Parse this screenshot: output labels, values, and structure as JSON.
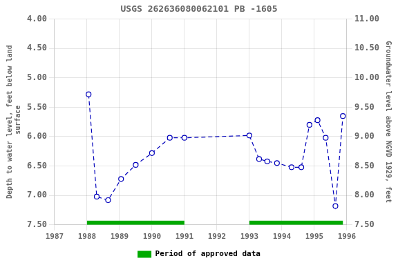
{
  "chart_data": {
    "type": "line",
    "title": "USGS 262636080062101 PB -1605",
    "y_label": "Depth to water level, feet below land\n surface",
    "y2_label": "Groundwater level above NGVD 1929, feet",
    "x": [
      1988.05,
      1988.3,
      1988.65,
      1989.05,
      1989.5,
      1990.0,
      1990.55,
      1991.0,
      1993.0,
      1993.3,
      1993.55,
      1993.85,
      1994.3,
      1994.6,
      1994.85,
      1995.1,
      1995.35,
      1995.65,
      1995.88
    ],
    "series": [
      {
        "color": "#0000bb",
        "line_style": "dashed",
        "marker": "circle",
        "values": [
          5.28,
          7.02,
          7.08,
          6.72,
          6.48,
          6.28,
          6.02,
          6.02,
          5.98,
          6.38,
          6.42,
          6.45,
          6.52,
          6.52,
          5.8,
          5.72,
          6.02,
          7.18,
          5.65
        ]
      }
    ],
    "xlim": [
      1987,
      1996
    ],
    "xticks": [
      1987,
      1988,
      1989,
      1990,
      1991,
      1992,
      1993,
      1994,
      1995,
      1996
    ],
    "ylim": [
      7.5,
      4.0
    ],
    "yticks": [
      {
        "value": 4.0,
        "label": "4.00"
      },
      {
        "value": 4.5,
        "label": "4.50"
      },
      {
        "value": 5.0,
        "label": "5.00"
      },
      {
        "value": 5.5,
        "label": "5.50"
      },
      {
        "value": 6.0,
        "label": "6.00"
      },
      {
        "value": 6.5,
        "label": "6.50"
      },
      {
        "value": 7.0,
        "label": "7.00"
      },
      {
        "value": 7.5,
        "label": "7.50"
      }
    ],
    "y2lim": [
      7.5,
      11.0
    ],
    "y2ticks": [
      {
        "value": 7.5,
        "label": "7.50"
      },
      {
        "value": 8.0,
        "label": "8.00"
      },
      {
        "value": 8.5,
        "label": "8.50"
      },
      {
        "value": 9.0,
        "label": "9.00"
      },
      {
        "value": 9.5,
        "label": "9.50"
      },
      {
        "value": 10.0,
        "label": "10.00"
      },
      {
        "value": 10.5,
        "label": "10.50"
      },
      {
        "value": 11.0,
        "label": "11.00"
      }
    ],
    "approved_periods": [
      [
        1988.0,
        1991.0
      ],
      [
        1993.0,
        1995.88
      ]
    ],
    "approved_label": "Period of approved data",
    "approved_color": "#00aa00",
    "legend": "bottom",
    "grid": true
  }
}
